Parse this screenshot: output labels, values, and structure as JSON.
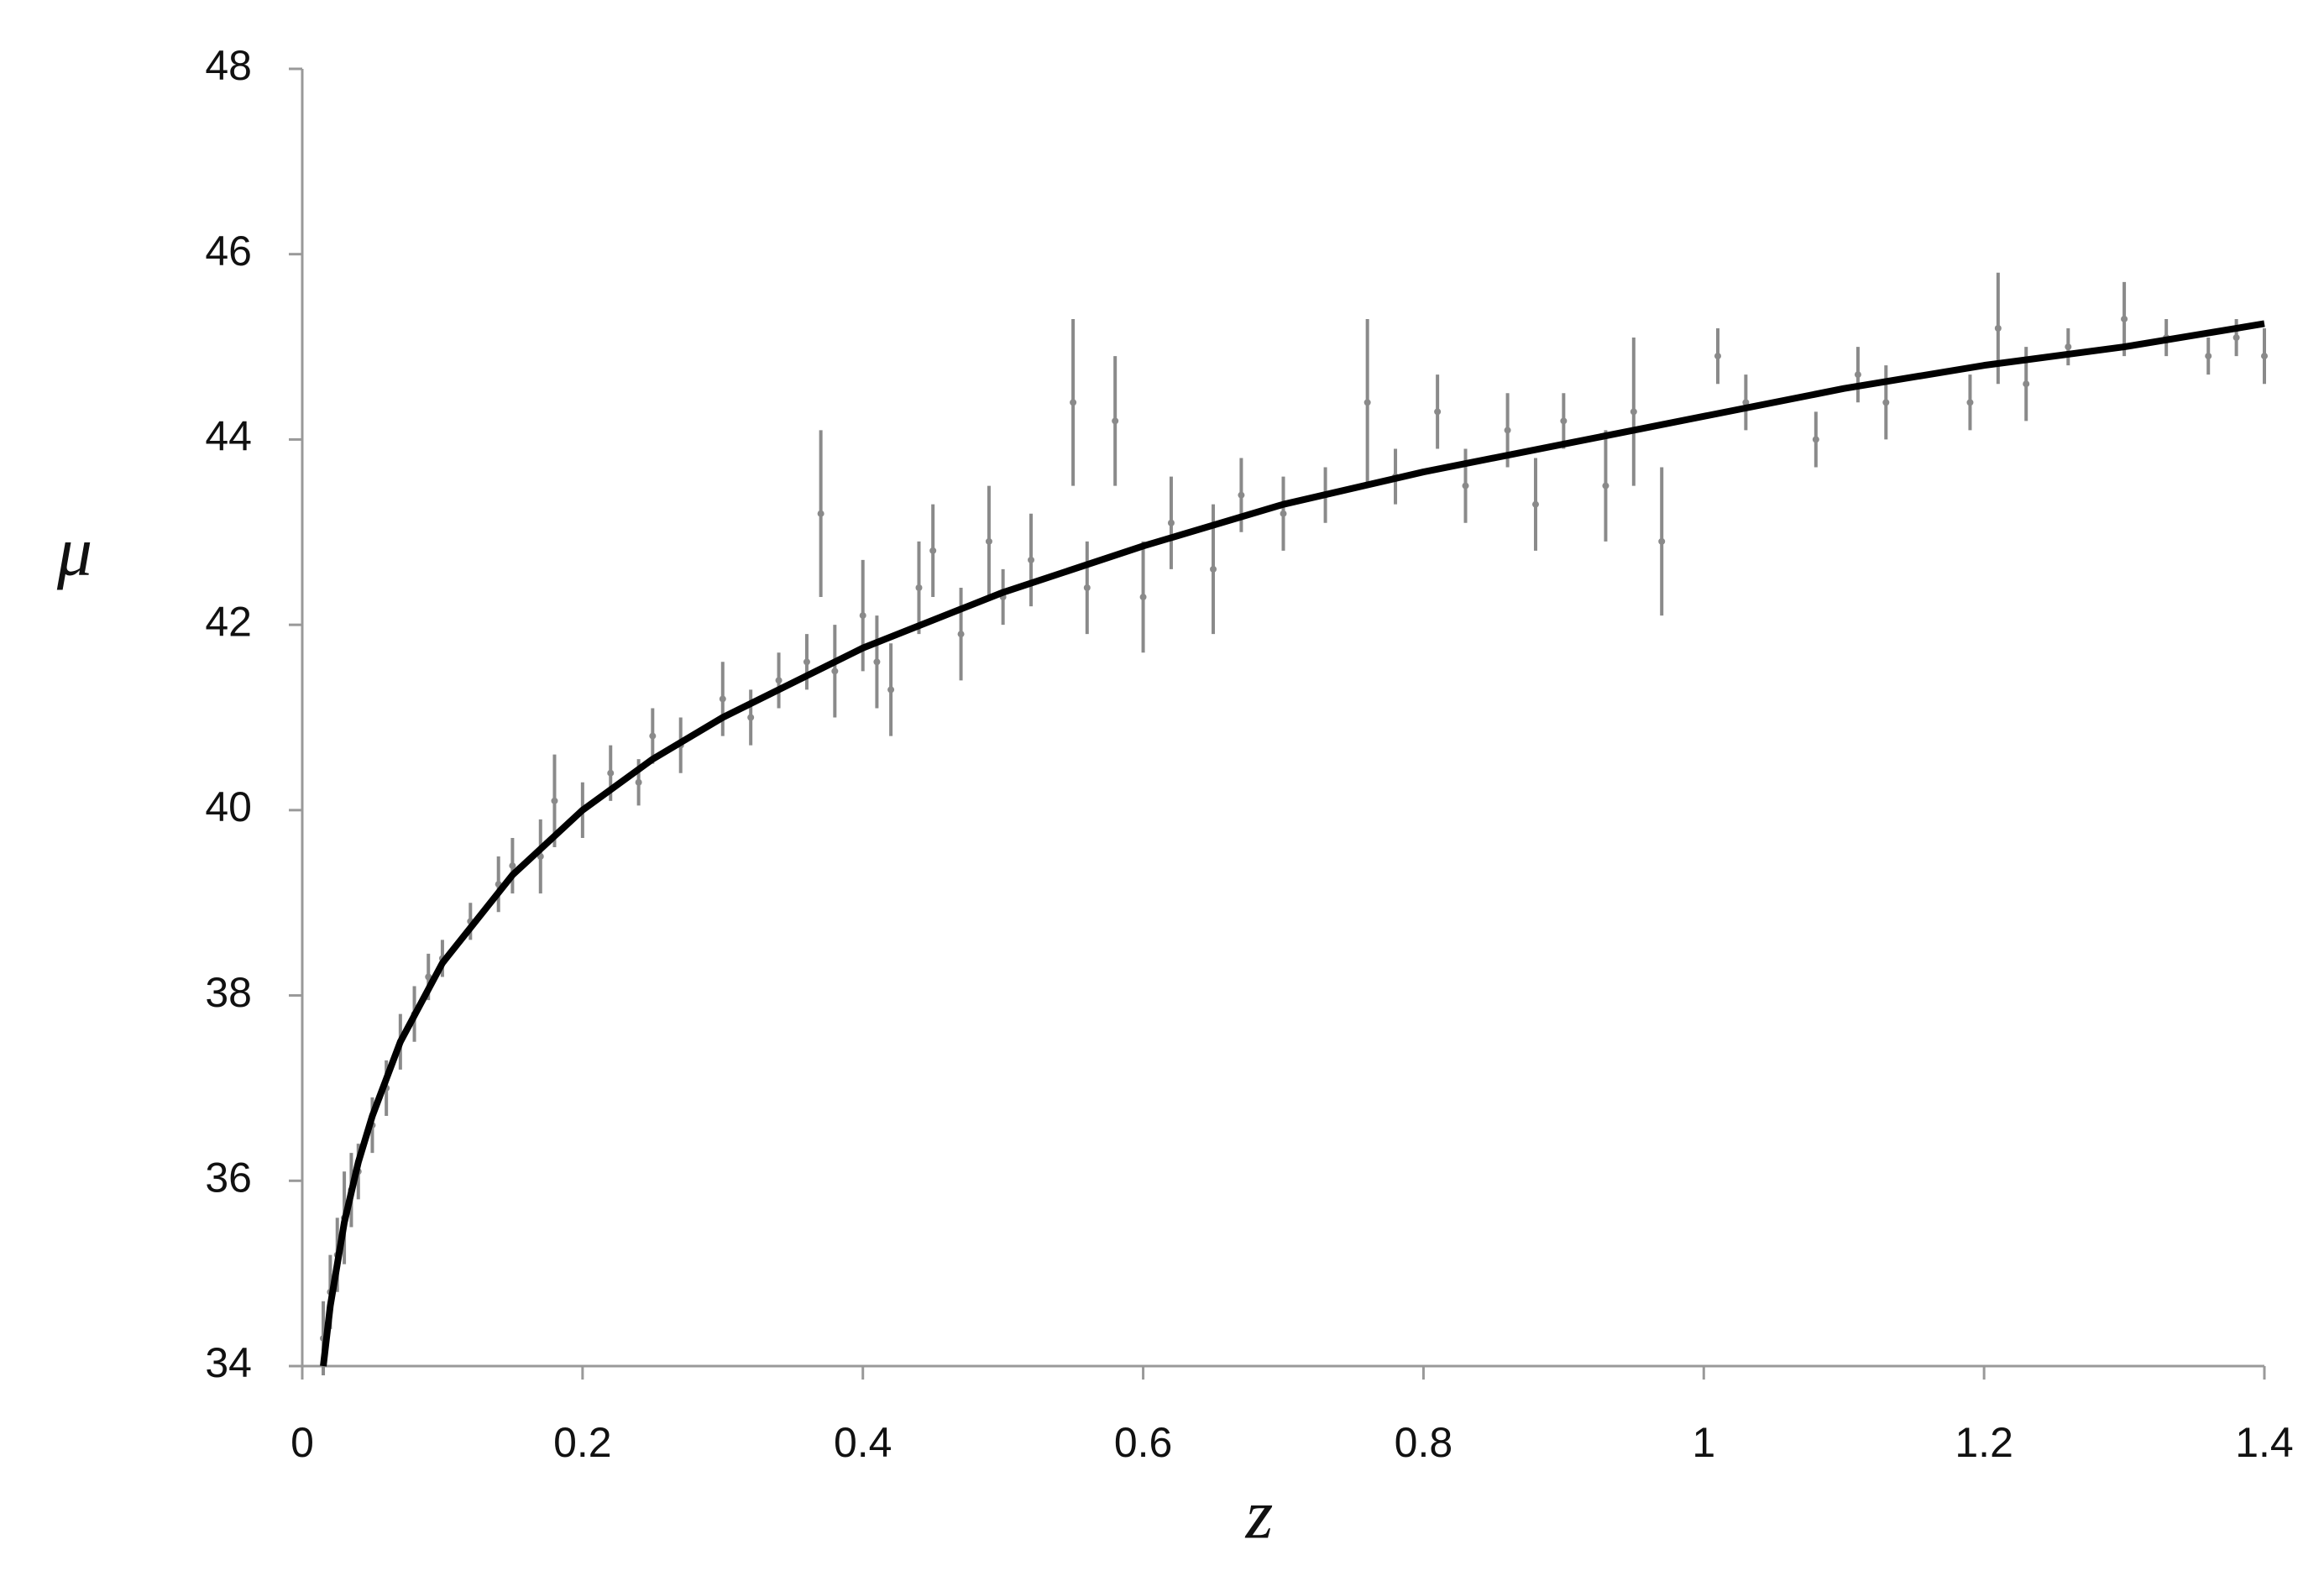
{
  "chart_data": {
    "type": "scatter",
    "xlabel": "z",
    "ylabel": "μ",
    "xlim": [
      0,
      1.4
    ],
    "ylim": [
      34,
      48
    ],
    "xticks": [
      0,
      0.2,
      0.4,
      0.6,
      0.8,
      1,
      1.2,
      1.4
    ],
    "yticks": [
      34,
      36,
      38,
      40,
      42,
      44,
      46,
      48
    ],
    "color": "#8a8a8a",
    "x": [
      0.015,
      0.02,
      0.025,
      0.03,
      0.035,
      0.04,
      0.05,
      0.06,
      0.07,
      0.08,
      0.09,
      0.1,
      0.12,
      0.14,
      0.15,
      0.17,
      0.18,
      0.2,
      0.22,
      0.24,
      0.25,
      0.27,
      0.3,
      0.32,
      0.34,
      0.36,
      0.37,
      0.38,
      0.4,
      0.41,
      0.42,
      0.44,
      0.45,
      0.47,
      0.49,
      0.5,
      0.52,
      0.55,
      0.56,
      0.58,
      0.6,
      0.62,
      0.65,
      0.67,
      0.7,
      0.73,
      0.76,
      0.78,
      0.81,
      0.83,
      0.86,
      0.88,
      0.9,
      0.93,
      0.95,
      0.97,
      1.01,
      1.03,
      1.08,
      1.11,
      1.13,
      1.19,
      1.21,
      1.23,
      1.26,
      1.3,
      1.33,
      1.36,
      1.38,
      1.4
    ],
    "values": [
      34.3,
      34.8,
      35.2,
      35.6,
      35.9,
      36.1,
      36.6,
      37.0,
      37.5,
      37.8,
      38.2,
      38.4,
      38.8,
      39.2,
      39.4,
      39.5,
      40.1,
      40.0,
      40.4,
      40.3,
      40.8,
      40.7,
      41.2,
      41.0,
      41.4,
      41.6,
      43.2,
      41.5,
      42.1,
      41.6,
      41.3,
      42.4,
      42.8,
      41.9,
      42.9,
      42.3,
      42.7,
      44.4,
      42.4,
      44.2,
      42.3,
      43.1,
      42.6,
      43.4,
      43.2,
      43.4,
      44.4,
      43.6,
      44.3,
      43.5,
      44.1,
      43.3,
      44.2,
      43.5,
      44.3,
      42.9,
      44.9,
      44.4,
      44.0,
      44.7,
      44.4,
      44.4,
      45.2,
      44.6,
      45.0,
      45.3,
      45.1,
      44.9,
      45.1,
      44.9
    ],
    "errors": [
      0.4,
      0.4,
      0.4,
      0.5,
      0.4,
      0.3,
      0.3,
      0.3,
      0.3,
      0.3,
      0.25,
      0.2,
      0.2,
      0.3,
      0.3,
      0.4,
      0.5,
      0.3,
      0.3,
      0.25,
      0.3,
      0.3,
      0.4,
      0.3,
      0.3,
      0.3,
      0.9,
      0.5,
      0.6,
      0.5,
      0.5,
      0.5,
      0.5,
      0.5,
      0.6,
      0.3,
      0.5,
      0.9,
      0.5,
      0.7,
      0.6,
      0.5,
      0.7,
      0.4,
      0.4,
      0.3,
      0.9,
      0.3,
      0.4,
      0.4,
      0.4,
      0.5,
      0.3,
      0.6,
      0.8,
      0.8,
      0.3,
      0.3,
      0.3,
      0.3,
      0.4,
      0.3,
      0.6,
      0.4,
      0.2,
      0.4,
      0.2,
      0.2,
      0.2,
      0.3
    ],
    "fit": {
      "color": "#000000",
      "x": [
        0.015,
        0.02,
        0.03,
        0.04,
        0.05,
        0.07,
        0.1,
        0.15,
        0.2,
        0.25,
        0.3,
        0.4,
        0.5,
        0.6,
        0.7,
        0.8,
        0.9,
        1.0,
        1.1,
        1.2,
        1.3,
        1.4
      ],
      "values": [
        34.0,
        34.65,
        35.55,
        36.2,
        36.7,
        37.5,
        38.35,
        39.3,
        40.0,
        40.55,
        41.0,
        41.75,
        42.35,
        42.85,
        43.3,
        43.65,
        43.95,
        44.25,
        44.55,
        44.8,
        45.0,
        45.25
      ]
    }
  }
}
